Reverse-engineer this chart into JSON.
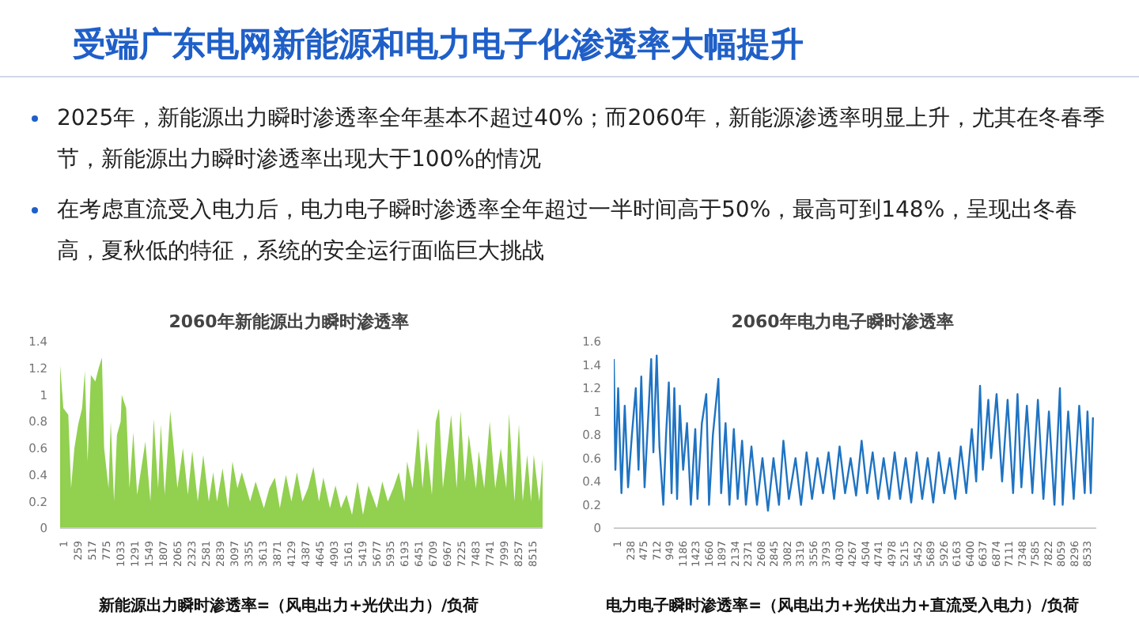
{
  "chart_data": [
    {
      "type": "other",
      "title": "受端广东电网新能源和电力电子化渗透率大幅提升",
      "annotations": [
        "2025年，新能源出力瞬时渗透率全年基本不超过40%；而2060年，新能源渗透率明显上升，尤其在冬春季节，新能源出力瞬时渗透率出现大于100%的情况",
        "在考虑直流受入电力后，电力电子瞬时渗透率全年超过一半时间高于50%，最高可到148%，呈现出冬春高，夏秋低的特征，系统的安全运行面临巨大挑战"
      ]
    },
    {
      "type": "area",
      "title": "2060年新能源出力瞬时渗透率",
      "annotations": [
        "新能源出力瞬时渗透率=（风电出力+光伏出力）/负荷"
      ],
      "color": "#92d050",
      "xlim": [
        1,
        8760
      ],
      "ylim": [
        0,
        1.4
      ],
      "yticks": [
        0,
        0.2,
        0.4,
        0.6,
        0.8,
        1,
        1.2,
        1.4
      ],
      "xticks": [
        1,
        259,
        517,
        775,
        1033,
        1291,
        1549,
        1807,
        2065,
        2323,
        2581,
        2839,
        3097,
        3355,
        3613,
        3871,
        4129,
        4387,
        4645,
        4903,
        5161,
        5419,
        5677,
        5935,
        6193,
        6451,
        6709,
        6967,
        7225,
        7483,
        7741,
        7999,
        8257,
        8515
      ],
      "x": [
        1,
        60,
        150,
        200,
        260,
        330,
        400,
        450,
        500,
        560,
        640,
        700,
        760,
        800,
        880,
        920,
        980,
        1033,
        1100,
        1120,
        1200,
        1260,
        1330,
        1400,
        1549,
        1640,
        1700,
        1780,
        1830,
        1900,
        2000,
        2065,
        2130,
        2230,
        2320,
        2400,
        2500,
        2600,
        2700,
        2780,
        2850,
        2950,
        3050,
        3130,
        3220,
        3300,
        3450,
        3550,
        3700,
        3800,
        3900,
        3990,
        4100,
        4200,
        4300,
        4400,
        4500,
        4600,
        4700,
        4780,
        4900,
        5000,
        5100,
        5200,
        5300,
        5400,
        5500,
        5600,
        5750,
        5850,
        5950,
        6050,
        6150,
        6250,
        6300,
        6400,
        6500,
        6580,
        6650,
        6750,
        6820,
        6880,
        6950,
        7100,
        7200,
        7270,
        7350,
        7420,
        7550,
        7600,
        7700,
        7800,
        7900,
        8000,
        8100,
        8150,
        8250,
        8330,
        8400,
        8480,
        8550,
        8600,
        8700,
        8760
      ],
      "values": [
        1.22,
        0.9,
        0.85,
        0.3,
        0.6,
        0.78,
        0.9,
        1.18,
        0.5,
        1.15,
        1.1,
        1.2,
        1.28,
        0.6,
        0.3,
        0.8,
        0.2,
        0.7,
        0.8,
        1.0,
        0.9,
        0.3,
        0.72,
        0.25,
        0.65,
        0.2,
        0.82,
        0.3,
        0.78,
        0.25,
        0.88,
        0.6,
        0.3,
        0.6,
        0.25,
        0.58,
        0.2,
        0.55,
        0.2,
        0.42,
        0.2,
        0.45,
        0.15,
        0.5,
        0.3,
        0.42,
        0.2,
        0.35,
        0.15,
        0.3,
        0.38,
        0.15,
        0.4,
        0.2,
        0.42,
        0.2,
        0.3,
        0.46,
        0.2,
        0.38,
        0.15,
        0.32,
        0.15,
        0.25,
        0.1,
        0.35,
        0.1,
        0.32,
        0.15,
        0.35,
        0.2,
        0.3,
        0.42,
        0.2,
        0.5,
        0.3,
        0.75,
        0.3,
        0.65,
        0.25,
        0.8,
        0.9,
        0.3,
        0.85,
        0.3,
        0.88,
        0.35,
        0.7,
        0.3,
        0.58,
        0.3,
        0.8,
        0.3,
        0.6,
        0.3,
        0.86,
        0.2,
        0.78,
        0.2,
        0.55,
        0.2,
        0.55,
        0.2,
        0.52
      ]
    },
    {
      "type": "line",
      "title": "2060年电力电子瞬时渗透率",
      "annotations": [
        "电力电子瞬时渗透率=（风电出力+光伏出力+直流受入电力）/负荷"
      ],
      "color": "#1f73c2",
      "xlim": [
        1,
        8760
      ],
      "ylim": [
        0,
        1.6
      ],
      "yticks": [
        0,
        0.2,
        0.4,
        0.6,
        0.8,
        1,
        1.2,
        1.4,
        1.6
      ],
      "xticks": [
        1,
        238,
        475,
        712,
        949,
        1186,
        1423,
        1660,
        1897,
        2134,
        2371,
        2608,
        2845,
        3082,
        3319,
        3556,
        3793,
        4030,
        4267,
        4504,
        4741,
        4978,
        5215,
        5452,
        5689,
        5926,
        6163,
        6400,
        6637,
        6874,
        7111,
        7348,
        7585,
        7822,
        8059,
        8296,
        8533
      ],
      "x": [
        1,
        30,
        80,
        140,
        200,
        260,
        330,
        400,
        450,
        500,
        560,
        620,
        680,
        720,
        780,
        830,
        900,
        950,
        1000,
        1050,
        1100,
        1150,
        1200,
        1260,
        1330,
        1400,
        1480,
        1520,
        1600,
        1680,
        1730,
        1800,
        1900,
        1950,
        2030,
        2100,
        2180,
        2250,
        2330,
        2400,
        2500,
        2600,
        2700,
        2800,
        2900,
        3000,
        3080,
        3180,
        3300,
        3400,
        3500,
        3600,
        3700,
        3800,
        3900,
        4000,
        4100,
        4200,
        4300,
        4400,
        4500,
        4600,
        4700,
        4800,
        4900,
        5000,
        5100,
        5200,
        5300,
        5400,
        5500,
        5600,
        5700,
        5800,
        5900,
        6000,
        6100,
        6200,
        6300,
        6400,
        6500,
        6580,
        6650,
        6700,
        6800,
        6850,
        6950,
        7050,
        7150,
        7250,
        7330,
        7400,
        7500,
        7600,
        7700,
        7800,
        7900,
        8000,
        8100,
        8150,
        8250,
        8350,
        8450,
        8550,
        8600,
        8660,
        8700
      ],
      "values": [
        1.45,
        0.5,
        1.2,
        0.3,
        1.05,
        0.35,
        0.8,
        1.2,
        0.5,
        1.3,
        0.35,
        0.9,
        1.45,
        0.65,
        1.48,
        0.7,
        0.2,
        0.8,
        1.25,
        0.3,
        1.2,
        0.25,
        1.05,
        0.5,
        0.9,
        0.2,
        0.85,
        0.25,
        0.9,
        1.15,
        0.2,
        0.8,
        1.28,
        0.3,
        0.9,
        0.2,
        0.85,
        0.25,
        0.75,
        0.2,
        0.7,
        0.2,
        0.6,
        0.15,
        0.6,
        0.2,
        0.75,
        0.25,
        0.6,
        0.2,
        0.65,
        0.25,
        0.6,
        0.3,
        0.65,
        0.25,
        0.7,
        0.3,
        0.6,
        0.28,
        0.75,
        0.3,
        0.65,
        0.25,
        0.6,
        0.25,
        0.65,
        0.25,
        0.6,
        0.22,
        0.65,
        0.25,
        0.6,
        0.22,
        0.65,
        0.3,
        0.6,
        0.25,
        0.7,
        0.3,
        0.85,
        0.4,
        1.22,
        0.5,
        1.1,
        0.6,
        1.15,
        0.4,
        1.1,
        0.3,
        1.15,
        0.35,
        1.05,
        0.3,
        1.1,
        0.25,
        1.0,
        0.2,
        1.2,
        0.2,
        1.0,
        0.25,
        1.05,
        0.3,
        1.0,
        0.3,
        0.95
      ]
    }
  ]
}
